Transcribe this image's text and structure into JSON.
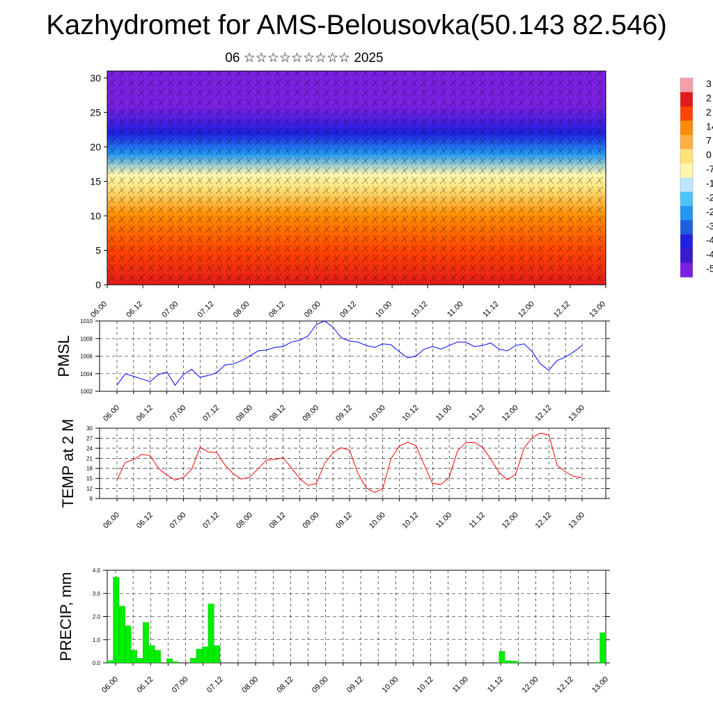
{
  "title": "Kazhydromet for AMS-Belousovka(50.143 82.546)",
  "subtitle": "06 ☆☆☆☆☆☆☆☆☆ 2025",
  "chart_data": [
    {
      "type": "heatmap",
      "ylim": [
        0,
        31
      ],
      "yticks": [
        "0",
        "5",
        "10",
        "15",
        "20",
        "25",
        "30"
      ],
      "x_ticks": [
        "06.00",
        "06.12",
        "07.00",
        "07.12",
        "08.00",
        "08.12",
        "09.00",
        "09.12",
        "10.00",
        "10.12",
        "11.00",
        "11.12",
        "12.00",
        "12.12",
        "13.00"
      ],
      "colorbar_labels": [
        "3",
        "2",
        "2",
        "14",
        "7",
        "0",
        "-7",
        "-1",
        "-2",
        "-2",
        "-3",
        "-4",
        "-4",
        "-5"
      ],
      "colorbar_colors": [
        "#f4a0a8",
        "#e31a1c",
        "#ff4500",
        "#ff8c00",
        "#ffb040",
        "#ffe27a",
        "#fff7b0",
        "#bfe6ff",
        "#4fc3f7",
        "#2196f3",
        "#1e5fe0",
        "#2020e0",
        "#3a1ad0",
        "#7a20e0"
      ],
      "temperature_profile": [
        {
          "level": 0,
          "value": 28
        },
        {
          "level": 5,
          "value": 20
        },
        {
          "level": 10,
          "value": 10
        },
        {
          "level": 14,
          "value": 0
        },
        {
          "level": 16,
          "value": -8
        },
        {
          "level": 19,
          "value": -25
        },
        {
          "level": 22,
          "value": -40
        },
        {
          "level": 26,
          "value": -52
        },
        {
          "level": 31,
          "value": -55
        }
      ]
    },
    {
      "type": "line",
      "ylabel": "PMSL",
      "ylim": [
        1002,
        1010
      ],
      "yticks": [
        "1002",
        "1004",
        "1006",
        "1008",
        "1010"
      ],
      "x_ticks": [
        "06.00",
        "06.12",
        "07.00",
        "07.12",
        "08.00",
        "08.12",
        "09.00",
        "09.12",
        "10.00",
        "10.12",
        "11.00",
        "11.12",
        "12.00",
        "12.12",
        "13.00"
      ],
      "color": "#0000ff",
      "values": [
        1002.7,
        1004.0,
        1003.7,
        1003.4,
        1003.1,
        1003.9,
        1004.2,
        1002.7,
        1003.9,
        1004.5,
        1003.6,
        1003.8,
        1004.1,
        1005.0,
        1005.1,
        1005.5,
        1006.0,
        1006.6,
        1006.7,
        1007.0,
        1007.1,
        1007.6,
        1007.8,
        1008.3,
        1009.6,
        1010.0,
        1009.3,
        1008.1,
        1007.7,
        1007.6,
        1007.2,
        1007.0,
        1007.4,
        1007.3,
        1006.5,
        1005.8,
        1006.0,
        1006.8,
        1007.1,
        1006.8,
        1007.2,
        1007.6,
        1007.6,
        1007.1,
        1007.2,
        1007.5,
        1006.8,
        1006.6,
        1007.2,
        1007.4,
        1006.5,
        1005.1,
        1004.4,
        1005.5,
        1005.9,
        1006.5,
        1007.2
      ]
    },
    {
      "type": "line",
      "ylabel": "TEMP at 2 M",
      "ylim": [
        9,
        30
      ],
      "yticks": [
        "9",
        "12",
        "15",
        "18",
        "21",
        "24",
        "27",
        "30"
      ],
      "x_ticks": [
        "06.00",
        "06.12",
        "07.00",
        "07.12",
        "08.00",
        "08.12",
        "09.00",
        "09.12",
        "10.00",
        "10.12",
        "11.00",
        "11.12",
        "12.00",
        "12.12",
        "13.00"
      ],
      "color": "#ff0000",
      "values": [
        14.5,
        19.8,
        20.6,
        22.2,
        21.8,
        18.0,
        16.0,
        14.5,
        15.3,
        17.8,
        24.3,
        22.9,
        22.8,
        19.0,
        16.4,
        14.8,
        15.4,
        17.9,
        20.5,
        20.7,
        21.2,
        18.2,
        15.0,
        12.9,
        13.5,
        19.5,
        22.6,
        24.2,
        23.4,
        16.6,
        12.2,
        10.8,
        12.0,
        20.9,
        24.7,
        25.8,
        24.8,
        19.0,
        13.5,
        13.2,
        15.3,
        23.2,
        25.7,
        25.8,
        24.3,
        20.9,
        16.8,
        14.6,
        16.2,
        24.0,
        27.3,
        28.5,
        28.0,
        18.9,
        17.0,
        15.6,
        15.3
      ]
    },
    {
      "type": "bar",
      "ylabel": "PRECIP, mm",
      "ylim": [
        0,
        4
      ],
      "yticks": [
        "0.0",
        "1.0",
        "2.0",
        "3.0",
        "4.0"
      ],
      "x_ticks": [
        "06.00",
        "06.12",
        "07.00",
        "07.12",
        "08.00",
        "08.12",
        "09.00",
        "09.12",
        "10.00",
        "10.12",
        "11.00",
        "11.12",
        "12.00",
        "12.12",
        "13.00"
      ],
      "color": "#00ee00",
      "values": [
        0.1,
        3.7,
        2.45,
        1.6,
        0.55,
        0.2,
        1.75,
        0.75,
        0.55,
        0,
        0.18,
        0.05,
        0,
        0,
        0.2,
        0.6,
        0.7,
        2.55,
        0.75,
        0,
        0,
        0,
        0,
        0,
        0,
        0,
        0,
        0,
        0,
        0,
        0,
        0,
        0,
        0,
        0,
        0,
        0,
        0,
        0,
        0,
        0,
        0,
        0,
        0,
        0,
        0,
        0,
        0,
        0,
        0,
        0,
        0,
        0,
        0,
        0,
        0,
        0,
        0,
        0,
        0,
        0,
        0,
        0,
        0,
        0,
        0,
        0.5,
        0.1,
        0.08,
        0.02,
        0,
        0,
        0,
        0,
        0,
        0,
        0,
        0,
        0,
        0,
        0,
        0,
        0.02,
        1.3
      ]
    }
  ]
}
